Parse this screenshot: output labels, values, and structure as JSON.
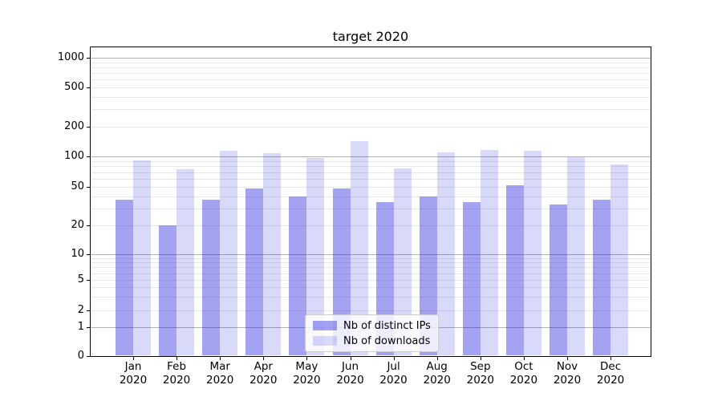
{
  "chart_data": {
    "type": "bar",
    "title": "target 2020",
    "year": "2020",
    "categories": [
      "Jan",
      "Feb",
      "Mar",
      "Apr",
      "May",
      "Jun",
      "Jul",
      "Aug",
      "Sep",
      "Oct",
      "Nov",
      "Dec"
    ],
    "series": [
      {
        "name": "Nb of distinct IPs",
        "color": "rgba(17,17,221,0.39)",
        "values": [
          37,
          20,
          37,
          48,
          40,
          48,
          35,
          40,
          35,
          52,
          33,
          37
        ]
      },
      {
        "name": "Nb of downloads",
        "color": "rgba(17,17,221,0.16)",
        "values": [
          92,
          75,
          113,
          107,
          96,
          143,
          76,
          110,
          117,
          113,
          98,
          84
        ]
      }
    ],
    "yticks": [
      0,
      1,
      2,
      5,
      10,
      20,
      50,
      100,
      200,
      500,
      1000
    ],
    "yscale": "symlog",
    "ylim": [
      0,
      1250
    ],
    "grid": true,
    "legend_position": "lower-center"
  }
}
